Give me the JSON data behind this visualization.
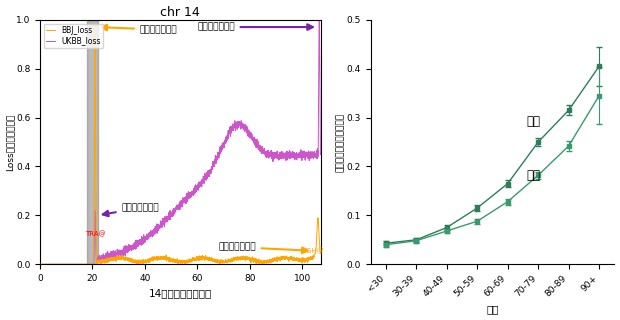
{
  "left": {
    "title": "chr 14",
    "xlabel": "14番染色体上の場所",
    "ylabel": "Loss変異が及ぶ割合",
    "xlim": [
      0,
      107
    ],
    "ylim": [
      0,
      1.0
    ],
    "gray_region": [
      18,
      22
    ],
    "bbj_color": "#FFA500",
    "ukbb_color": "#CC55CC",
    "legend_bbj": "BBJ_loss",
    "legend_ukbb": "UKBB_loss",
    "ann_jp_peak_top": "日本人のピーク",
    "ann_uk_peak_top": "英国人のピーク",
    "ann_uk_peak_mid": "英国人のピーク",
    "ann_jp_peak_bot": "日本人のピーク"
  },
  "right": {
    "xlabel": "年齢",
    "ylabel": "体細胞モザイク保有割合",
    "ylim": [
      0,
      0.5
    ],
    "categories": [
      "<30",
      "30-39",
      "40-49",
      "50-59",
      "60-69",
      "70-79",
      "80-89",
      "90+"
    ],
    "male_values": [
      0.043,
      0.05,
      0.075,
      0.115,
      0.165,
      0.25,
      0.315,
      0.405
    ],
    "male_err": [
      0.004,
      0.004,
      0.005,
      0.006,
      0.007,
      0.008,
      0.01,
      0.04
    ],
    "female_values": [
      0.04,
      0.048,
      0.068,
      0.088,
      0.128,
      0.182,
      0.242,
      0.345
    ],
    "female_err": [
      0.004,
      0.004,
      0.005,
      0.005,
      0.006,
      0.007,
      0.01,
      0.058
    ],
    "male_color": "#2d7d5a",
    "female_color": "#3a9a6e",
    "male_label": "男性",
    "female_label": "女性",
    "yticks": [
      0,
      0.1,
      0.2,
      0.3,
      0.4,
      0.5
    ]
  }
}
